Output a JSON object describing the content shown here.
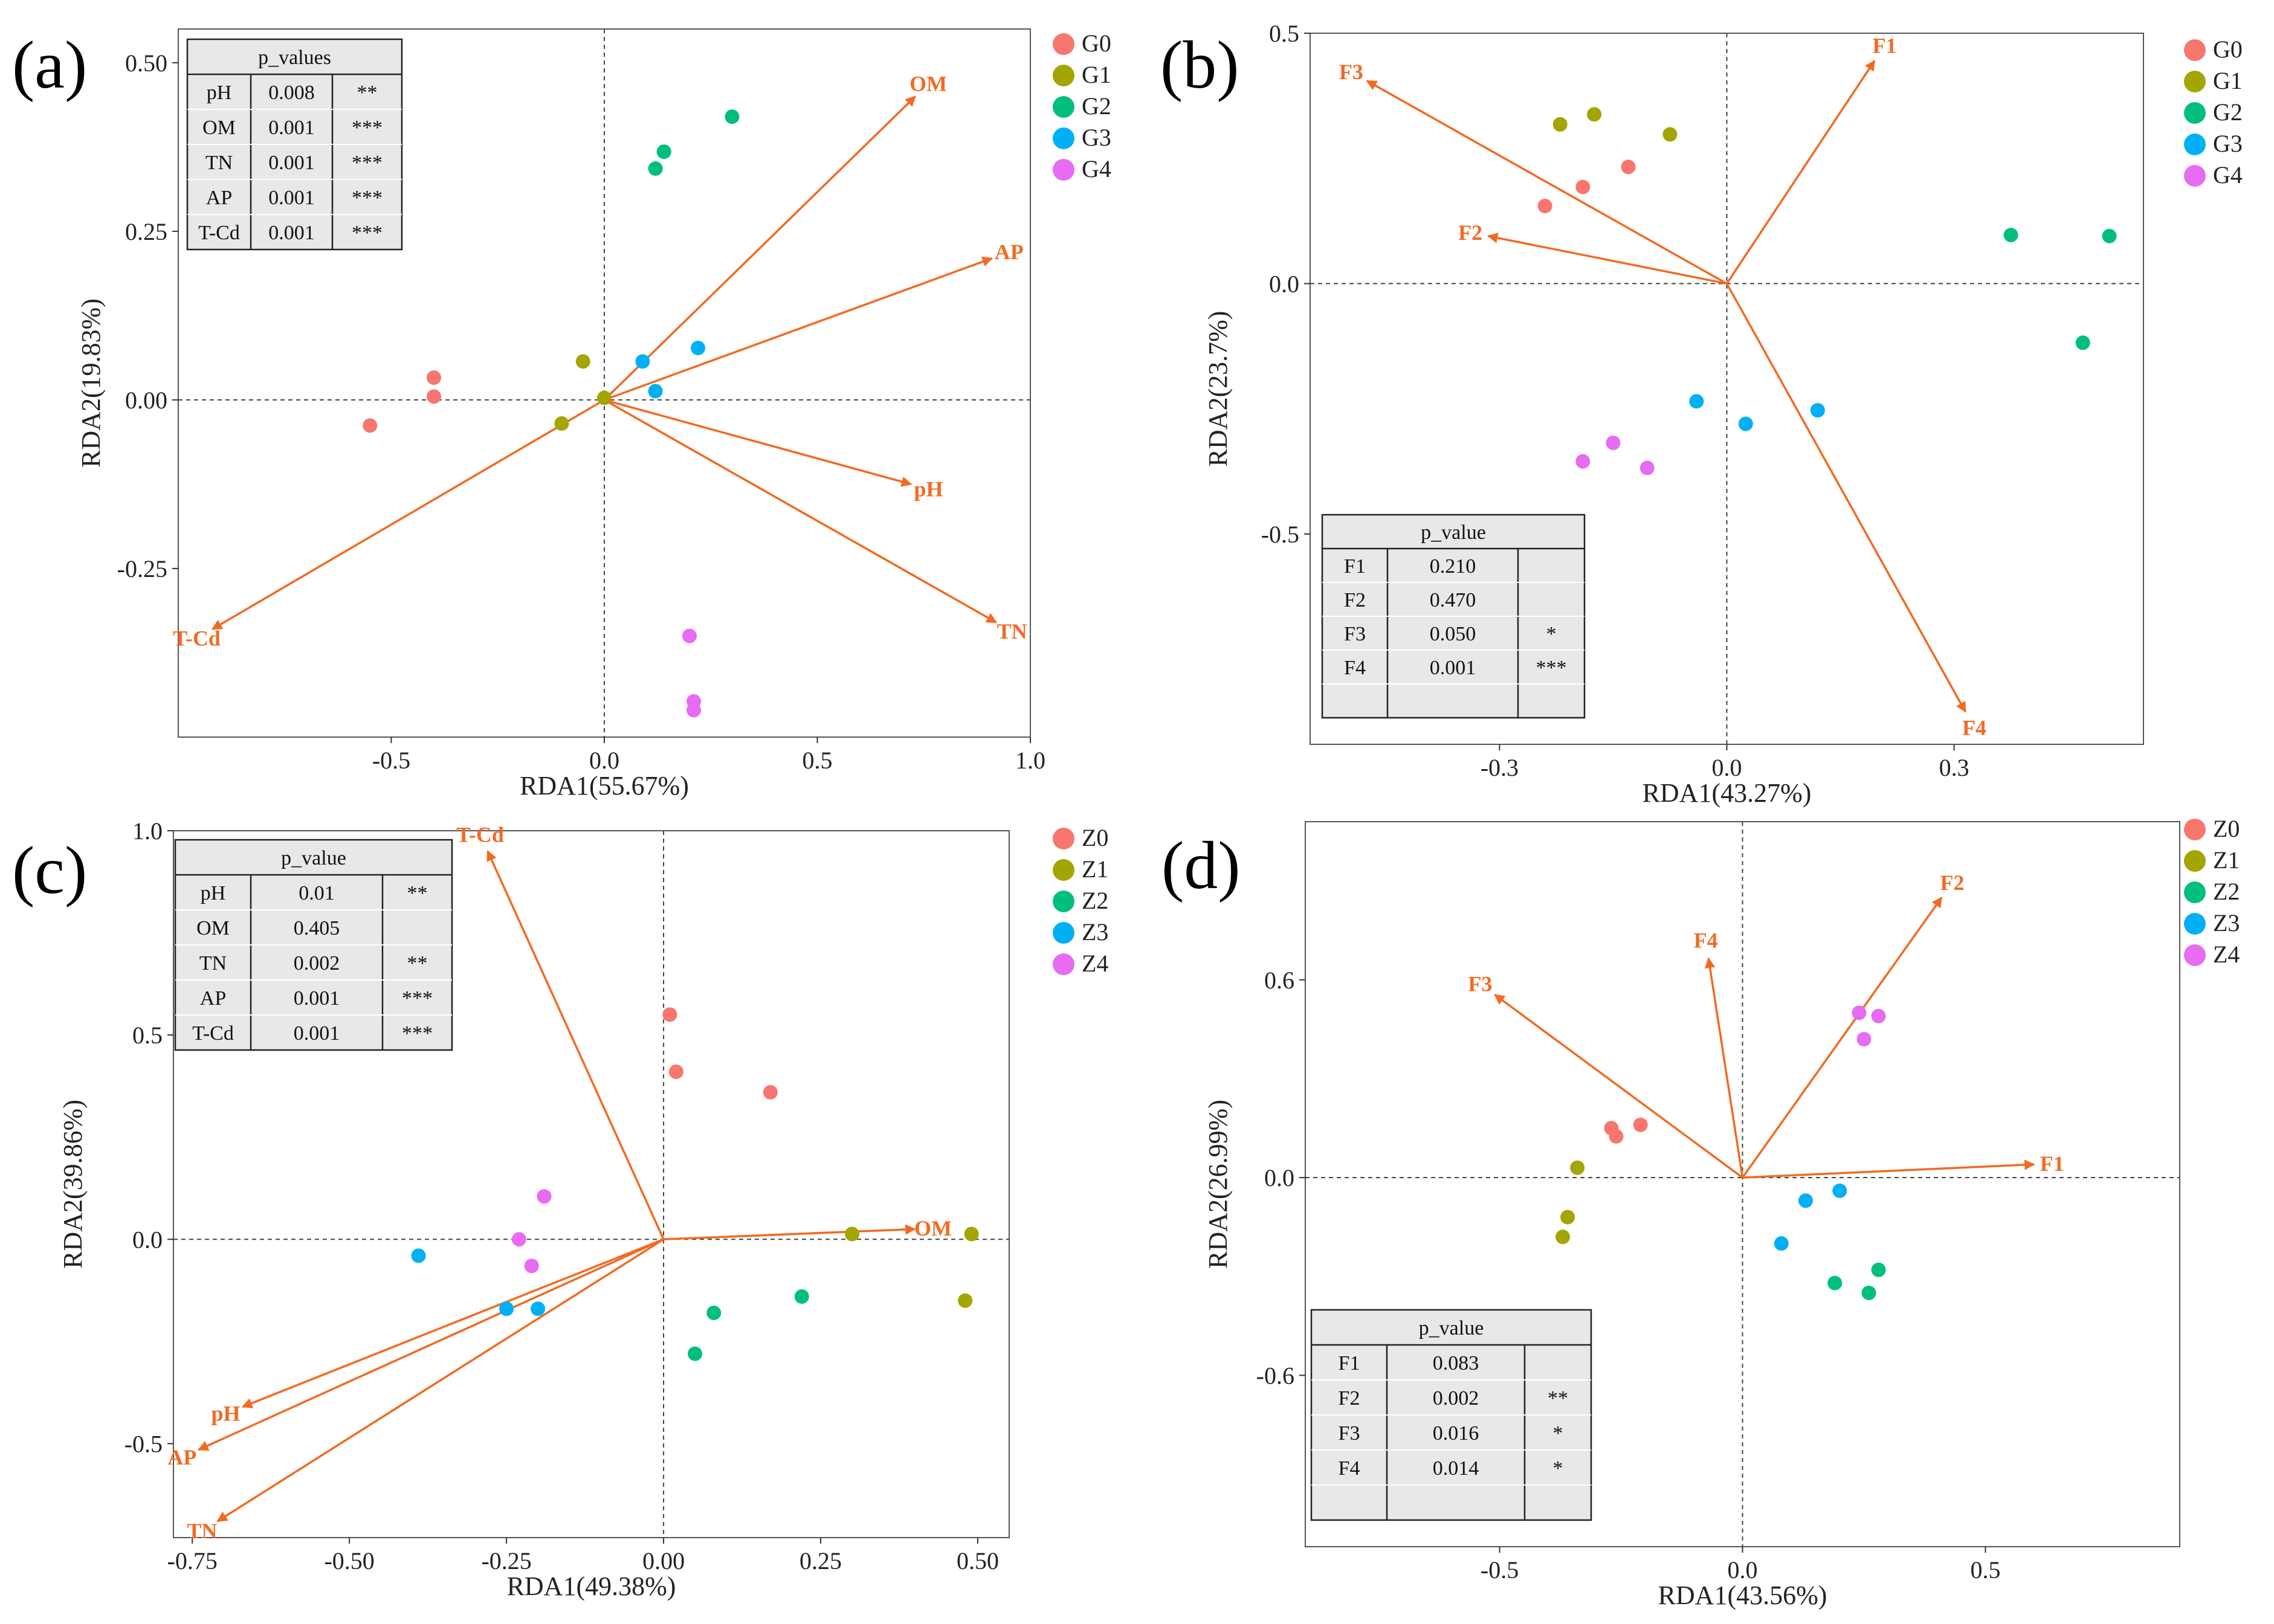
{
  "figure": {
    "panel_labels": [
      "(a)",
      "(b)",
      "(c)",
      "(d)"
    ]
  },
  "colors": {
    "arrow": "#F26A22",
    "arrow_label": "#F26A22",
    "G0": "#F8766D",
    "G1": "#A3A500",
    "G2": "#00BF7D",
    "G3": "#00B0F6",
    "G4": "#E76BF3",
    "Z0": "#F8766D",
    "Z1": "#A3A500",
    "Z2": "#00BF7D",
    "Z3": "#00B0F6",
    "Z4": "#E76BF3",
    "table_bg": "#E8E8E8"
  },
  "chart_data": [
    {
      "panel": "(a)",
      "type": "scatter",
      "xlabel": "RDA1(55.67%)",
      "ylabel": "RDA2(19.83%)",
      "xlim": [
        -1.0,
        1.0
      ],
      "ylim": [
        -0.5,
        0.55
      ],
      "xticks": [
        -0.5,
        0.0,
        0.5,
        1.0
      ],
      "xtick_labels": [
        "-0.5",
        "0.0",
        "0.5",
        "1.0"
      ],
      "yticks": [
        -0.25,
        0.0,
        0.25,
        0.5
      ],
      "ytick_labels": [
        "-0.25",
        "0.00",
        "0.25",
        "0.50"
      ],
      "legend": [
        "G0",
        "G1",
        "G2",
        "G3",
        "G4"
      ],
      "series": [
        {
          "name": "G0",
          "points": [
            [
              -0.4,
              0.033
            ],
            [
              -0.4,
              0.005
            ],
            [
              -0.55,
              -0.038
            ]
          ]
        },
        {
          "name": "G1",
          "points": [
            [
              -0.05,
              0.057
            ],
            [
              0.0,
              0.003
            ],
            [
              -0.1,
              -0.035
            ]
          ]
        },
        {
          "name": "G2",
          "points": [
            [
              0.3,
              0.42
            ],
            [
              0.14,
              0.368
            ],
            [
              0.12,
              0.343
            ]
          ]
        },
        {
          "name": "G3",
          "points": [
            [
              0.09,
              0.057
            ],
            [
              0.22,
              0.077
            ],
            [
              0.12,
              0.013
            ]
          ]
        },
        {
          "name": "G4",
          "points": [
            [
              0.2,
              -0.35
            ],
            [
              0.21,
              -0.447
            ],
            [
              0.21,
              -0.46
            ]
          ]
        }
      ],
      "arrows": [
        {
          "label": "OM",
          "x": 0.73,
          "y": 0.45
        },
        {
          "label": "AP",
          "x": 0.91,
          "y": 0.21
        },
        {
          "label": "pH",
          "x": 0.72,
          "y": -0.125
        },
        {
          "label": "TN",
          "x": 0.92,
          "y": -0.33
        },
        {
          "label": "T-Cd",
          "x": -0.92,
          "y": -0.34
        }
      ],
      "table": {
        "title": "p_values",
        "rows": [
          [
            "pH",
            "0.008",
            "**"
          ],
          [
            "OM",
            "0.001",
            "***"
          ],
          [
            "TN",
            "0.001",
            "***"
          ],
          [
            "AP",
            "0.001",
            "***"
          ],
          [
            "T-Cd",
            "0.001",
            "***"
          ]
        ],
        "blank_rows": 0
      }
    },
    {
      "panel": "(b)",
      "type": "scatter",
      "xlabel": "RDA1(43.27%)",
      "ylabel": "RDA2(23.7%)",
      "xlim": [
        -0.55,
        0.55
      ],
      "ylim": [
        -0.92,
        0.5
      ],
      "xticks": [
        -0.3,
        0.0,
        0.3
      ],
      "xtick_labels": [
        "-0.3",
        "0.0",
        "0.3"
      ],
      "yticks": [
        -0.5,
        0.0,
        0.5
      ],
      "ytick_labels": [
        "-0.5",
        "0.0",
        "0.5"
      ],
      "legend": [
        "G0",
        "G1",
        "G2",
        "G3",
        "G4"
      ],
      "series": [
        {
          "name": "G0",
          "points": [
            [
              -0.13,
              0.233
            ],
            [
              -0.19,
              0.193
            ],
            [
              -0.24,
              0.155
            ]
          ]
        },
        {
          "name": "G1",
          "points": [
            [
              -0.22,
              0.318
            ],
            [
              -0.175,
              0.338
            ],
            [
              -0.075,
              0.298
            ]
          ]
        },
        {
          "name": "G2",
          "points": [
            [
              0.375,
              0.097
            ],
            [
              0.505,
              0.095
            ],
            [
              0.47,
              -0.118
            ]
          ]
        },
        {
          "name": "G3",
          "points": [
            [
              -0.04,
              -0.235
            ],
            [
              0.025,
              -0.28
            ],
            [
              0.12,
              -0.253
            ]
          ]
        },
        {
          "name": "G4",
          "points": [
            [
              -0.15,
              -0.318
            ],
            [
              -0.19,
              -0.355
            ],
            [
              -0.105,
              -0.368
            ]
          ]
        }
      ],
      "arrows": [
        {
          "label": "F1",
          "x": 0.195,
          "y": 0.445
        },
        {
          "label": "F2",
          "x": -0.315,
          "y": 0.095
        },
        {
          "label": "F3",
          "x": -0.475,
          "y": 0.405
        },
        {
          "label": "F4",
          "x": 0.315,
          "y": -0.855
        }
      ],
      "table": {
        "title": "p_value",
        "rows": [
          [
            "F1",
            "0.210",
            ""
          ],
          [
            "F2",
            "0.470",
            ""
          ],
          [
            "F3",
            "0.050",
            "*"
          ],
          [
            "F4",
            "0.001",
            "***"
          ]
        ],
        "blank_rows": 1
      }
    },
    {
      "panel": "(c)",
      "type": "scatter",
      "xlabel": "RDA1(49.38%)",
      "ylabel": "RDA2(39.86%)",
      "xlim": [
        -0.78,
        0.55
      ],
      "ylim": [
        -0.73,
        1.0
      ],
      "xticks": [
        -0.75,
        -0.5,
        -0.25,
        0.0,
        0.25,
        0.5
      ],
      "xtick_labels": [
        "-0.75",
        "-0.50",
        "-0.25",
        "0.00",
        "0.25",
        "0.50"
      ],
      "yticks": [
        -0.5,
        0.0,
        0.5,
        1.0
      ],
      "ytick_labels": [
        "-0.5",
        "0.0",
        "0.5",
        "1.0"
      ],
      "legend": [
        "Z0",
        "Z1",
        "Z2",
        "Z3",
        "Z4"
      ],
      "series": [
        {
          "name": "Z0",
          "points": [
            [
              0.01,
              0.55
            ],
            [
              0.02,
              0.41
            ],
            [
              0.17,
              0.36
            ]
          ]
        },
        {
          "name": "Z1",
          "points": [
            [
              0.3,
              0.013
            ],
            [
              0.49,
              0.013
            ],
            [
              0.48,
              -0.15
            ]
          ]
        },
        {
          "name": "Z2",
          "points": [
            [
              0.22,
              -0.14
            ],
            [
              0.08,
              -0.18
            ],
            [
              0.05,
              -0.28
            ]
          ]
        },
        {
          "name": "Z3",
          "points": [
            [
              -0.39,
              -0.04
            ],
            [
              -0.25,
              -0.17
            ],
            [
              -0.2,
              -0.17
            ]
          ]
        },
        {
          "name": "Z4",
          "points": [
            [
              -0.19,
              0.105
            ],
            [
              -0.23,
              0.0
            ],
            [
              -0.21,
              -0.065
            ]
          ]
        }
      ],
      "arrows": [
        {
          "label": "T-Cd",
          "x": -0.28,
          "y": 0.95
        },
        {
          "label": "OM",
          "x": 0.4,
          "y": 0.025
        },
        {
          "label": "pH",
          "x": -0.67,
          "y": -0.41
        },
        {
          "label": "AP",
          "x": -0.74,
          "y": -0.515
        },
        {
          "label": "TN",
          "x": -0.71,
          "y": -0.69
        }
      ],
      "table": {
        "title": "p_value",
        "rows": [
          [
            "pH",
            "0.01",
            "**"
          ],
          [
            "OM",
            "0.405",
            ""
          ],
          [
            "TN",
            "0.002",
            "**"
          ],
          [
            "AP",
            "0.001",
            "***"
          ],
          [
            "T-Cd",
            "0.001",
            "***"
          ]
        ],
        "blank_rows": 0
      }
    },
    {
      "panel": "(d)",
      "type": "scatter",
      "xlabel": "RDA1(43.56%)",
      "ylabel": "RDA2(26.99%)",
      "xlim": [
        -0.9,
        0.9
      ],
      "ylim": [
        -1.12,
        1.08
      ],
      "xticks": [
        -0.5,
        0.0,
        0.5
      ],
      "xtick_labels": [
        "-0.5",
        "0.0",
        "0.5"
      ],
      "yticks": [
        -0.6,
        0.0,
        0.6
      ],
      "ytick_labels": [
        "-0.6",
        "0.0",
        "0.6"
      ],
      "legend": [
        "Z0",
        "Z1",
        "Z2",
        "Z3",
        "Z4"
      ],
      "series": [
        {
          "name": "Z0",
          "points": [
            [
              -0.21,
              0.16
            ],
            [
              -0.27,
              0.15
            ],
            [
              -0.26,
              0.125
            ]
          ]
        },
        {
          "name": "Z1",
          "points": [
            [
              -0.34,
              0.03
            ],
            [
              -0.36,
              -0.12
            ],
            [
              -0.37,
              -0.18
            ]
          ]
        },
        {
          "name": "Z2",
          "points": [
            [
              0.28,
              -0.28
            ],
            [
              0.19,
              -0.32
            ],
            [
              0.26,
              -0.35
            ]
          ]
        },
        {
          "name": "Z3",
          "points": [
            [
              0.2,
              -0.04
            ],
            [
              0.13,
              -0.07
            ],
            [
              0.08,
              -0.2
            ]
          ]
        },
        {
          "name": "Z4",
          "points": [
            [
              0.24,
              0.5
            ],
            [
              0.28,
              0.49
            ],
            [
              0.25,
              0.42
            ]
          ]
        }
      ],
      "arrows": [
        {
          "label": "F1",
          "x": 0.6,
          "y": 0.04
        },
        {
          "label": "F2",
          "x": 0.41,
          "y": 0.85
        },
        {
          "label": "F3",
          "x": -0.51,
          "y": 0.555
        },
        {
          "label": "F4",
          "x": -0.07,
          "y": 0.665
        }
      ],
      "table": {
        "title": "p_value",
        "rows": [
          [
            "F1",
            "0.083",
            ""
          ],
          [
            "F2",
            "0.002",
            "**"
          ],
          [
            "F3",
            "0.016",
            "*"
          ],
          [
            "F4",
            "0.014",
            "*"
          ]
        ],
        "blank_rows": 1
      }
    }
  ]
}
